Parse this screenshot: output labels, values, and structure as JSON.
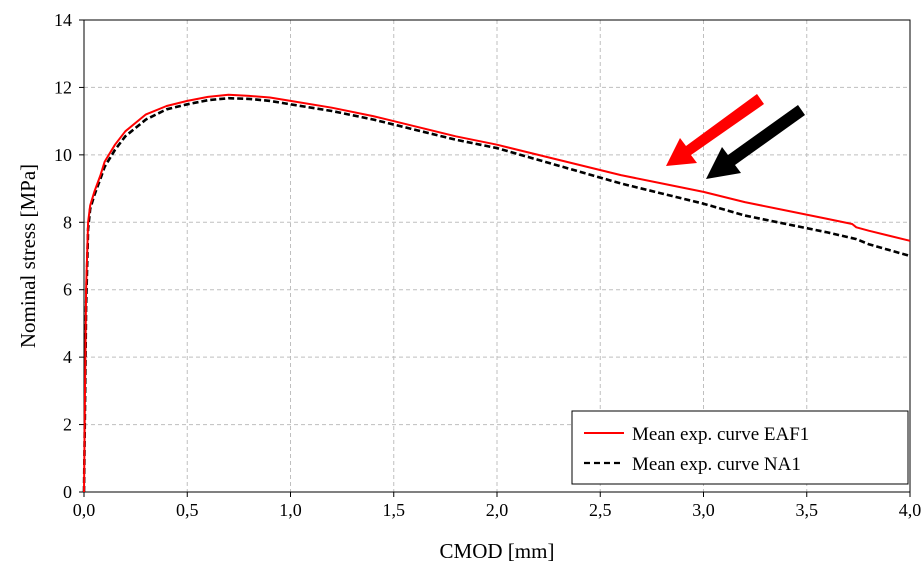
{
  "chart_data": {
    "type": "line",
    "xlabel": "CMOD [mm]",
    "ylabel": "Nominal stress [MPa]",
    "xlim": [
      0,
      4
    ],
    "ylim": [
      0,
      14
    ],
    "grid": true,
    "legend_position": "bottom-right",
    "x_ticks": [
      {
        "v": 0,
        "label": "0,0"
      },
      {
        "v": 0.5,
        "label": "0,5"
      },
      {
        "v": 1,
        "label": "1,0"
      },
      {
        "v": 1.5,
        "label": "1,5"
      },
      {
        "v": 2,
        "label": "2,0"
      },
      {
        "v": 2.5,
        "label": "2,5"
      },
      {
        "v": 3,
        "label": "3,0"
      },
      {
        "v": 3.5,
        "label": "3,5"
      },
      {
        "v": 4,
        "label": "4,0"
      }
    ],
    "y_ticks": [
      {
        "v": 0,
        "label": "0"
      },
      {
        "v": 2,
        "label": "2"
      },
      {
        "v": 4,
        "label": "4"
      },
      {
        "v": 6,
        "label": "6"
      },
      {
        "v": 8,
        "label": "8"
      },
      {
        "v": 10,
        "label": "10"
      },
      {
        "v": 12,
        "label": "12"
      },
      {
        "v": 14,
        "label": "14"
      }
    ],
    "series": [
      {
        "name": "Mean exp. curve EAF1",
        "color": "#ff0000",
        "style": "solid",
        "x": [
          0,
          0.005,
          0.01,
          0.02,
          0.03,
          0.05,
          0.08,
          0.1,
          0.15,
          0.2,
          0.3,
          0.4,
          0.5,
          0.6,
          0.7,
          0.8,
          0.9,
          1.0,
          1.2,
          1.4,
          1.6,
          1.8,
          2.0,
          2.2,
          2.4,
          2.6,
          2.8,
          3.0,
          3.2,
          3.4,
          3.6,
          3.72,
          3.74,
          3.8,
          4.0
        ],
        "values": [
          0,
          3.0,
          6.0,
          8.0,
          8.5,
          8.9,
          9.4,
          9.8,
          10.3,
          10.7,
          11.2,
          11.45,
          11.6,
          11.72,
          11.78,
          11.75,
          11.7,
          11.6,
          11.4,
          11.15,
          10.85,
          10.55,
          10.3,
          10.0,
          9.7,
          9.4,
          9.15,
          8.9,
          8.6,
          8.35,
          8.1,
          7.95,
          7.85,
          7.75,
          7.45
        ]
      },
      {
        "name": "Mean exp. curve NA1",
        "color": "#000000",
        "style": "dashed",
        "x": [
          0,
          0.005,
          0.01,
          0.02,
          0.03,
          0.05,
          0.08,
          0.1,
          0.15,
          0.2,
          0.3,
          0.4,
          0.5,
          0.6,
          0.7,
          0.8,
          0.9,
          1.0,
          1.2,
          1.4,
          1.6,
          1.8,
          2.0,
          2.2,
          2.4,
          2.6,
          2.8,
          3.0,
          3.2,
          3.4,
          3.6,
          3.74,
          3.8,
          4.0
        ],
        "values": [
          0,
          2.5,
          5.5,
          7.8,
          8.4,
          8.8,
          9.3,
          9.65,
          10.15,
          10.55,
          11.05,
          11.35,
          11.5,
          11.62,
          11.68,
          11.66,
          11.6,
          11.5,
          11.3,
          11.05,
          10.75,
          10.45,
          10.2,
          9.85,
          9.5,
          9.15,
          8.85,
          8.55,
          8.2,
          7.95,
          7.7,
          7.5,
          7.35,
          7.0
        ]
      }
    ]
  }
}
